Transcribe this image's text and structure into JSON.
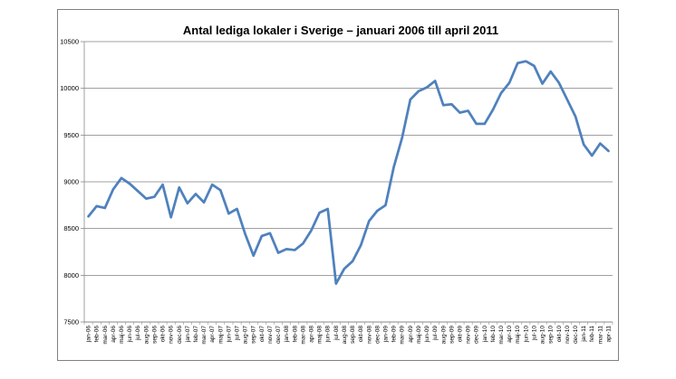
{
  "chart_data": {
    "type": "line",
    "title": "Antal lediga lokaler i Sverige – januari 2006 till april 2011",
    "xlabel": "",
    "ylabel": "",
    "ylim": [
      7500,
      10500
    ],
    "yticks": [
      7500,
      8000,
      8500,
      9000,
      9500,
      10000,
      10500
    ],
    "grid": "horizontal",
    "legend": "none",
    "line_color": "#4F81BD",
    "categories": [
      "jan-06",
      "feb-06",
      "mar-06",
      "apr-06",
      "maj-06",
      "jun-06",
      "jul-06",
      "aug-06",
      "sep-06",
      "okt-06",
      "nov-06",
      "dec-06",
      "jan-07",
      "feb-07",
      "mar-07",
      "apr-07",
      "maj-07",
      "jun-07",
      "jul-07",
      "aug-07",
      "sep-07",
      "okt-07",
      "nov-07",
      "dec-07",
      "jan-08",
      "feb-08",
      "mar-08",
      "apr-08",
      "maj-08",
      "jun-08",
      "jul-08",
      "aug-08",
      "sep-08",
      "okt-08",
      "nov-08",
      "dec-08",
      "jan-09",
      "feb-09",
      "mar-09",
      "apr-09",
      "maj-09",
      "jun-09",
      "jul-09",
      "aug-09",
      "sep-09",
      "okt-09",
      "nov-09",
      "dec-09",
      "jan-10",
      "feb-10",
      "mar-10",
      "apr-10",
      "maj-10",
      "jun-10",
      "jul-10",
      "aug-10",
      "sep-10",
      "okt-10",
      "nov-10",
      "dec-10",
      "jan-11",
      "feb-11",
      "mar-11",
      "apr-11"
    ],
    "values": [
      8630,
      8740,
      8720,
      8920,
      9040,
      8980,
      8900,
      8820,
      8840,
      8970,
      8620,
      8940,
      8770,
      8870,
      8780,
      8970,
      8910,
      8660,
      8710,
      8440,
      8210,
      8420,
      8450,
      8240,
      8280,
      8270,
      8340,
      8480,
      8670,
      8710,
      7910,
      8070,
      8150,
      8320,
      8580,
      8690,
      8750,
      9160,
      9470,
      9880,
      9970,
      10010,
      10080,
      9820,
      9830,
      9740,
      9760,
      9620,
      9620,
      9770,
      9950,
      10060,
      10270,
      10290,
      10240,
      10050,
      10180,
      10060,
      9880,
      9700,
      9400,
      9280,
      9410,
      9330
    ]
  }
}
